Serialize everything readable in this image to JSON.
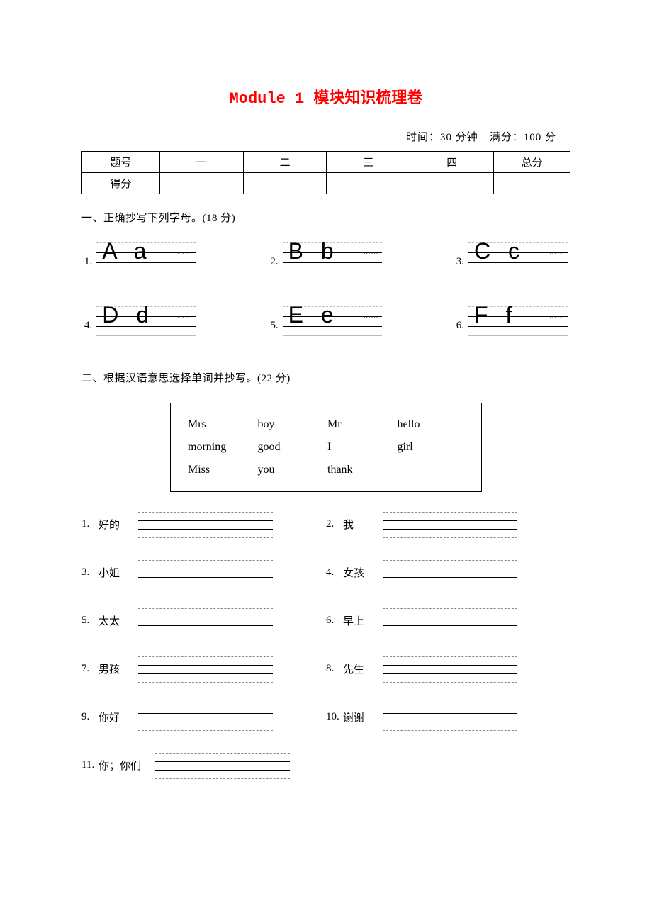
{
  "title": "Module 1 模块知识梳理卷",
  "meta": "时间：30 分钟　满分：100 分",
  "score_table": {
    "headers": [
      "题号",
      "一",
      "二",
      "三",
      "四",
      "总分"
    ],
    "row_label": "得分"
  },
  "section1": {
    "heading": "一、正确抄写下列字母。(18 分)",
    "items": [
      {
        "num": "1.",
        "letters": "A a"
      },
      {
        "num": "2.",
        "letters": "B b"
      },
      {
        "num": "3.",
        "letters": "C c"
      },
      {
        "num": "4.",
        "letters": "D d"
      },
      {
        "num": "5.",
        "letters": "E e"
      },
      {
        "num": "6.",
        "letters": "F f"
      }
    ]
  },
  "section2": {
    "heading": "二、根据汉语意思选择单词并抄写。(22 分)",
    "wordbox": [
      [
        "Mrs",
        "boy",
        "Mr",
        "hello"
      ],
      [
        "morning",
        "good",
        "I",
        "girl"
      ],
      [
        "Miss",
        "you",
        "thank",
        ""
      ]
    ],
    "items": [
      {
        "num": "1.",
        "label": "好的"
      },
      {
        "num": "2.",
        "label": "我"
      },
      {
        "num": "3.",
        "label": "小姐"
      },
      {
        "num": "4.",
        "label": "女孩"
      },
      {
        "num": "5.",
        "label": "太太"
      },
      {
        "num": "6.",
        "label": "早上"
      },
      {
        "num": "7.",
        "label": "男孩"
      },
      {
        "num": "8.",
        "label": "先生"
      },
      {
        "num": "9.",
        "label": "你好"
      },
      {
        "num": "10.",
        "label": "谢谢"
      },
      {
        "num": "11.",
        "label": "你；你们"
      }
    ]
  },
  "colors": {
    "title": "#ff0000",
    "text": "#000000",
    "line_dash": "#bbbbbb",
    "line_solid": "#000000",
    "bg": "#ffffff"
  }
}
